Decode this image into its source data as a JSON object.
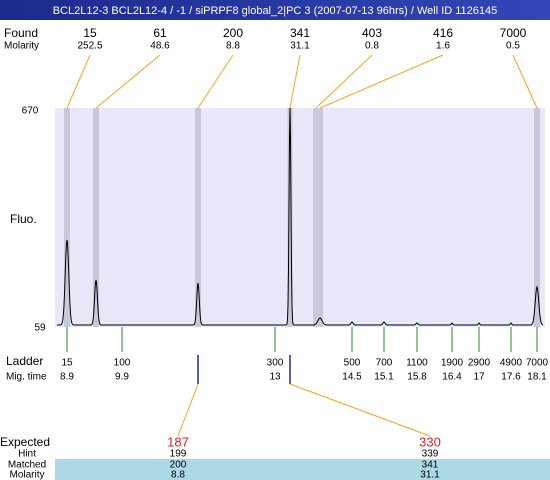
{
  "header": {
    "title": "BCL2L12-3  BCL2L12-4 / -1 / siPRPF8 global_2|PC 3 (2007-07-13 96hrs) / Well ID 1126145"
  },
  "found": {
    "label": "Found",
    "values": [
      15,
      61,
      200,
      341,
      403,
      416,
      7000
    ]
  },
  "molarity": {
    "label": "Molarity",
    "values": [
      252.5,
      48.6,
      8.8,
      31.1,
      0.8,
      1.6,
      0.5
    ]
  },
  "axis": {
    "label": "Fluo.",
    "top": 670,
    "bottom": 59
  },
  "ladder": {
    "label": "Ladder",
    "values": [
      15,
      100,
      300,
      500,
      700,
      1100,
      1900,
      2900,
      4900,
      7000
    ]
  },
  "mig_time": {
    "label": "Mig. time",
    "values": [
      8.9,
      9.9,
      13,
      14.5,
      15.1,
      15.8,
      16.4,
      17,
      17.6,
      18.1
    ]
  },
  "expected": {
    "label": "Expected",
    "values": [
      187,
      330
    ]
  },
  "hint": {
    "label": "Hint",
    "values": [
      199,
      339
    ]
  },
  "matched": {
    "label": "Matched",
    "values": [
      200,
      341
    ]
  },
  "matched_molarity": {
    "label": "Molarity",
    "values": [
      8.8,
      31.1
    ]
  }
}
